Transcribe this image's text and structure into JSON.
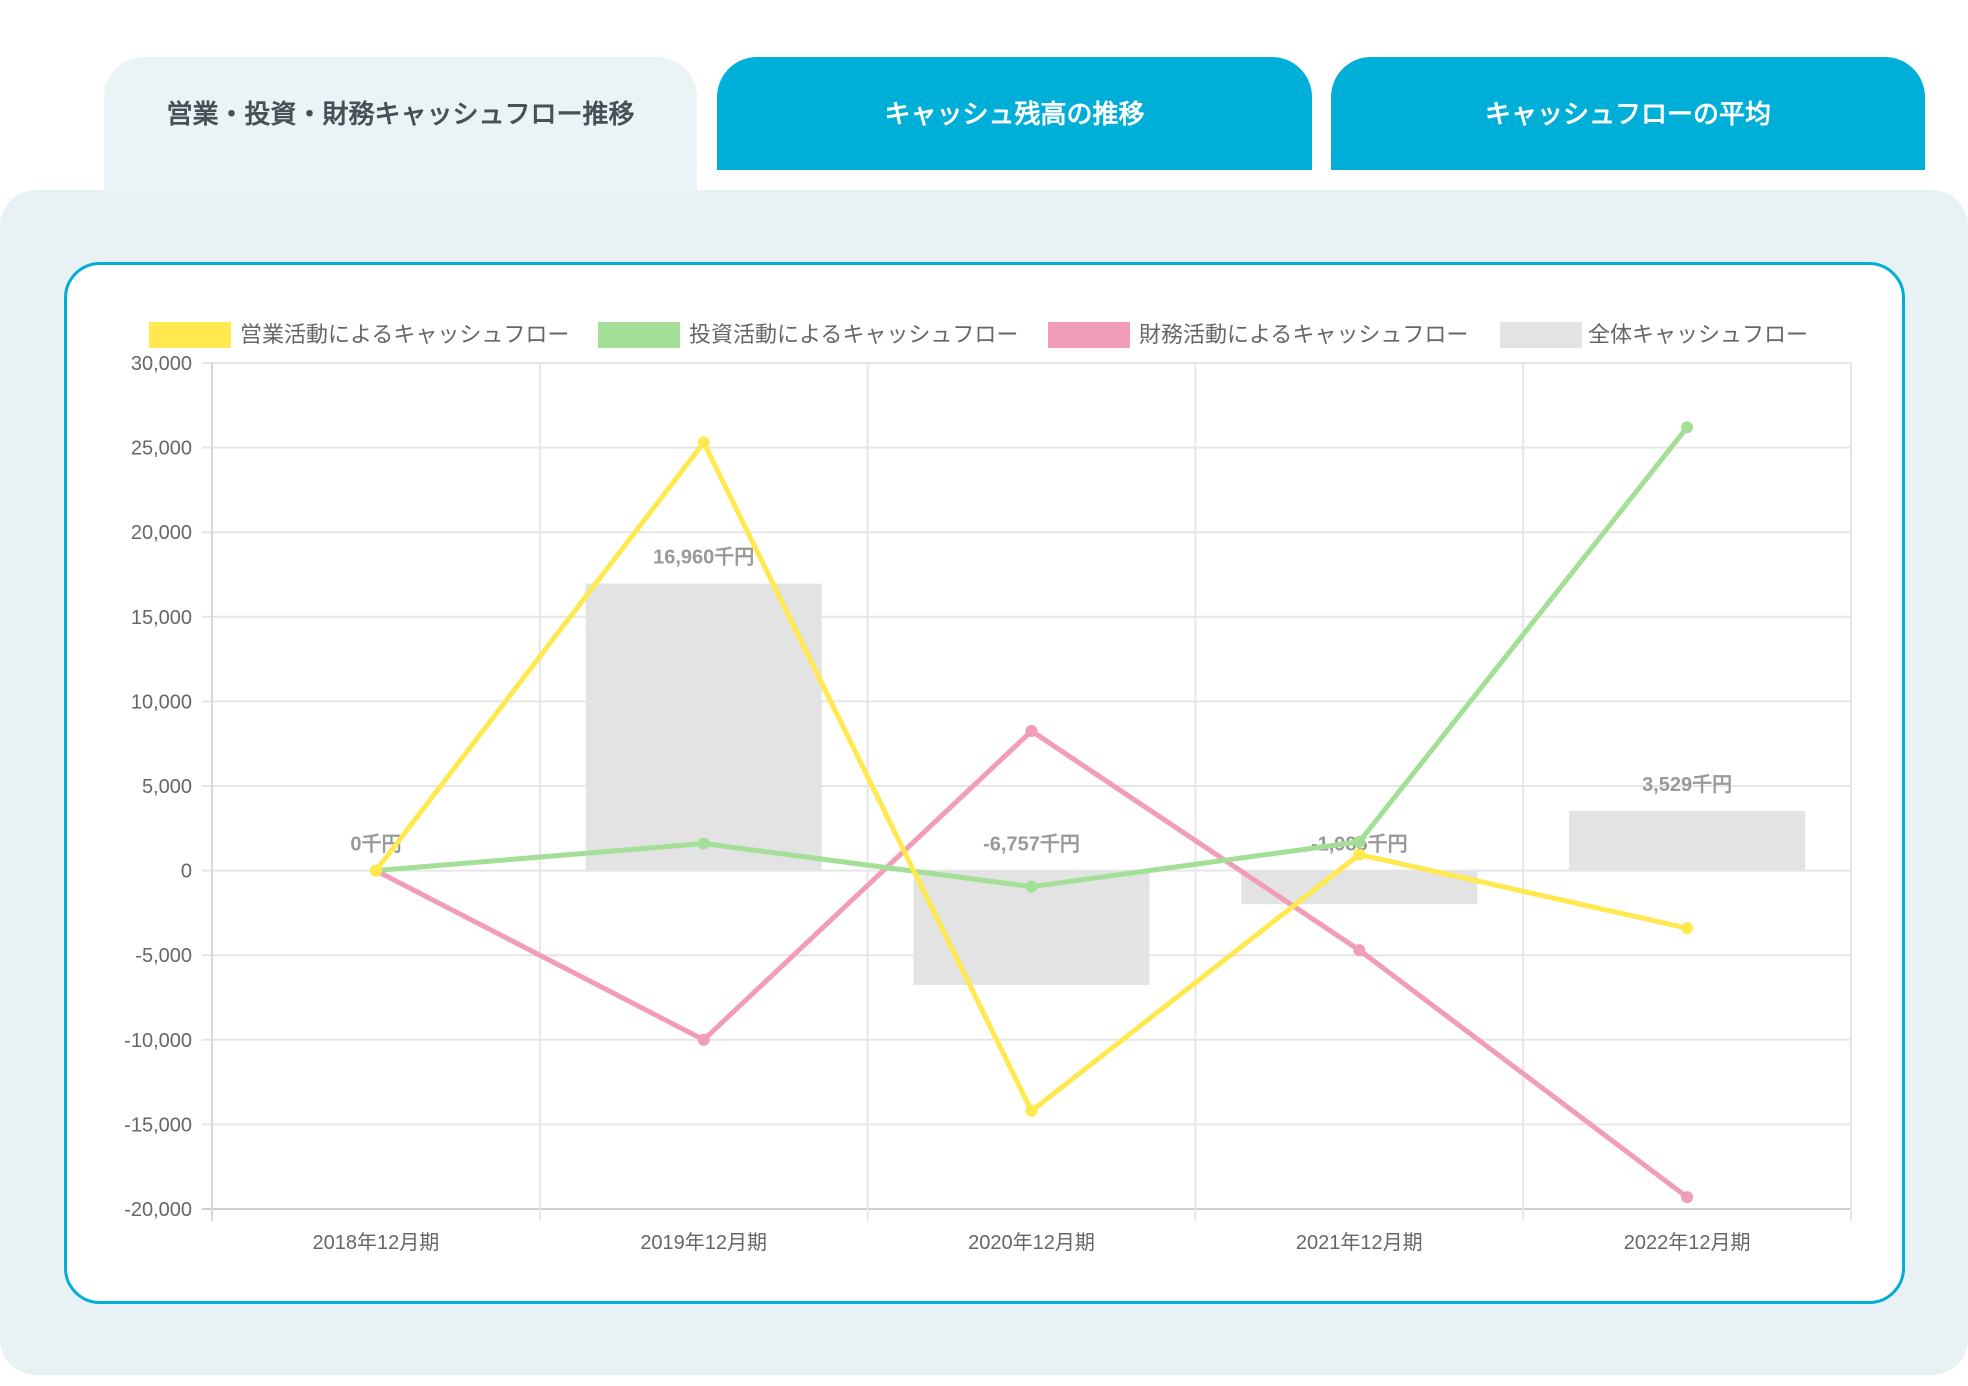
{
  "tabs": [
    {
      "label": "営業・投資・財務キャッシュフロー推移",
      "active": true
    },
    {
      "label": "キャッシュ残高の推移",
      "active": false
    },
    {
      "label": "キャッシュフローの平均",
      "active": false
    }
  ],
  "colors": {
    "accent": "#00afd7",
    "operating": "#ffe94f",
    "investing": "#a3df97",
    "financing": "#f29db8",
    "total": "#e3e3e3",
    "panel_bg": "#e8f2f4"
  },
  "chart_data": {
    "type": "bar+line",
    "title": "",
    "xlabel": "",
    "ylabel": "",
    "categories": [
      "2018年12月期",
      "2019年12月期",
      "2020年12月期",
      "2021年12月期",
      "2022年12月期"
    ],
    "ylim": [
      -20000,
      30000
    ],
    "yticks": [
      30000,
      25000,
      20000,
      15000,
      10000,
      5000,
      0,
      -5000,
      -10000,
      -15000,
      -20000
    ],
    "ytick_labels": [
      "30,000",
      "25,000",
      "20,000",
      "15,000",
      "10,000",
      "5,000",
      "0",
      "-5,000",
      "-10,000",
      "-15,000",
      "-20,000"
    ],
    "grid": true,
    "legend_position": "top",
    "series": [
      {
        "name": "営業活動によるキャッシュフロー",
        "type": "line",
        "color": "#ffe94f",
        "values": [
          0,
          25300,
          -14200,
          950,
          -3400
        ]
      },
      {
        "name": "投資活動によるキャッシュフロー",
        "type": "line",
        "color": "#a3df97",
        "values": [
          0,
          1600,
          -950,
          1700,
          26200
        ]
      },
      {
        "name": "財務活動によるキャッシュフロー",
        "type": "line",
        "color": "#f29db8",
        "values": [
          0,
          -10000,
          8250,
          -4700,
          -19300
        ]
      },
      {
        "name": "全体キャッシュフロー",
        "type": "bar",
        "color": "#e3e3e3",
        "values": [
          0,
          16960,
          -6757,
          -1985,
          3529
        ]
      }
    ],
    "bar_labels": [
      "0千円",
      "16,960千円",
      "-6,757千円",
      "-1,985千円",
      "3,529千円"
    ]
  }
}
